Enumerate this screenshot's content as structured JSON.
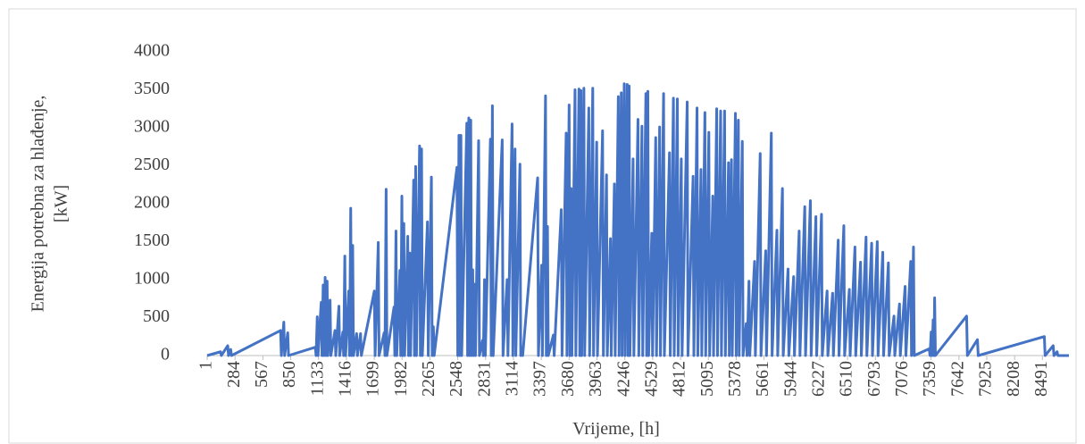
{
  "chart_data": {
    "type": "line",
    "ylabel": [
      "Energija potrebna za hlađenje,",
      "[kW]"
    ],
    "xlabel": "Vrijeme,  [h]",
    "color": "#4472c4",
    "xlim": [
      1,
      8760
    ],
    "xticks": [
      1,
      284,
      567,
      850,
      1133,
      1416,
      1699,
      1982,
      2265,
      2548,
      2831,
      3114,
      3397,
      3680,
      3963,
      4246,
      4529,
      4812,
      5095,
      5378,
      5661,
      5944,
      6227,
      6510,
      6793,
      7076,
      7359,
      7642,
      7925,
      8208,
      8491
    ],
    "ylim": [
      0,
      4000
    ],
    "yticks": [
      0,
      500,
      1000,
      1500,
      2000,
      2500,
      3000,
      3500,
      4000
    ],
    "grid": false,
    "x": [
      1,
      137,
      145,
      210,
      218,
      240,
      248,
      747,
      755,
      780,
      788,
      820,
      828,
      1100,
      1108,
      1120,
      1128,
      1160,
      1168,
      1180,
      1188,
      1200,
      1208,
      1220,
      1228,
      1250,
      1258,
      1300,
      1308,
      1340,
      1348,
      1380,
      1388,
      1400,
      1408,
      1440,
      1448,
      1460,
      1468,
      1480,
      1488,
      1520,
      1528,
      1560,
      1568,
      1700,
      1708,
      1740,
      1748,
      1800,
      1808,
      1820,
      1828,
      1900,
      1908,
      1920,
      1928,
      1960,
      1968,
      1980,
      1988,
      2000,
      2008,
      2040,
      2048,
      2060,
      2068,
      2100,
      2108,
      2120,
      2128,
      2160,
      2168,
      2180,
      2188,
      2240,
      2248,
      2280,
      2288,
      2300,
      2308,
      2540,
      2548,
      2560,
      2568,
      2580,
      2588,
      2640,
      2648,
      2660,
      2668,
      2680,
      2688,
      2700,
      2708,
      2720,
      2728,
      2760,
      2768,
      2800,
      2808,
      2820,
      2828,
      2880,
      2888,
      2900,
      2908,
      3000,
      3008,
      3050,
      3058,
      3100,
      3108,
      3130,
      3138,
      3180,
      3188,
      3200,
      3208,
      3360,
      3368,
      3400,
      3408,
      3440,
      3448,
      3460,
      3468,
      3520,
      3528,
      3600,
      3608,
      3650,
      3658,
      3680,
      3688,
      3700,
      3708,
      3740,
      3748,
      3780,
      3788,
      3800,
      3808,
      3830,
      3838,
      3880,
      3888,
      3920,
      3928,
      3960,
      3968,
      4020,
      4028,
      4060,
      4068,
      4100,
      4108,
      4140,
      4148,
      4180,
      4188,
      4210,
      4218,
      4240,
      4248,
      4270,
      4278,
      4290,
      4298,
      4330,
      4338,
      4380,
      4388,
      4420,
      4428,
      4460,
      4468,
      4480,
      4488,
      4520,
      4528,
      4560,
      4568,
      4600,
      4608,
      4640,
      4648,
      4700,
      4708,
      4740,
      4748,
      4780,
      4788,
      4820,
      4828,
      4880,
      4888,
      4940,
      4948,
      4980,
      4988,
      5020,
      5028,
      5060,
      5068,
      5100,
      5108,
      5140,
      5148,
      5180,
      5188,
      5220,
      5228,
      5260,
      5268,
      5300,
      5308,
      5330,
      5338,
      5370,
      5378,
      5400,
      5408,
      5440,
      5448,
      5480,
      5488,
      5508,
      5516,
      5565,
      5573,
      5622,
      5630,
      5678,
      5686,
      5735,
      5743,
      5792,
      5800,
      5848,
      5856,
      5905,
      5913,
      5962,
      5970,
      6018,
      6026,
      6075,
      6083,
      6132,
      6140,
      6188,
      6196,
      6245,
      6253,
      6302,
      6310,
      6358,
      6366,
      6415,
      6423,
      6472,
      6480,
      6528,
      6536,
      6585,
      6593,
      6642,
      6650,
      6698,
      6706,
      6755,
      6763,
      6812,
      6820,
      6868,
      6876,
      6925,
      6933,
      6982,
      6990,
      7038,
      7046,
      7095,
      7103,
      7152,
      7160,
      7180,
      7188,
      7340,
      7348,
      7360,
      7368,
      7380,
      7388,
      7395,
      7403,
      7720,
      7728,
      7830,
      7838,
      8510,
      8518,
      8600,
      8608,
      8640,
      8648,
      8760
    ],
    "values": [
      0,
      50,
      0,
      130,
      0,
      80,
      0,
      330,
      0,
      440,
      0,
      300,
      0,
      110,
      0,
      510,
      0,
      700,
      0,
      930,
      0,
      1030,
      0,
      980,
      0,
      730,
      0,
      330,
      0,
      650,
      0,
      310,
      0,
      1310,
      0,
      850,
      0,
      1940,
      0,
      1450,
      0,
      290,
      0,
      290,
      0,
      850,
      0,
      1490,
      0,
      300,
      0,
      2190,
      0,
      640,
      0,
      1640,
      0,
      1120,
      0,
      2100,
      0,
      1740,
      0,
      1570,
      0,
      1350,
      0,
      2310,
      0,
      2490,
      0,
      2760,
      0,
      2720,
      0,
      1760,
      0,
      2350,
      0,
      380,
      0,
      2480,
      0,
      2900,
      0,
      2900,
      0,
      3060,
      0,
      3130,
      0,
      3100,
      0,
      1130,
      0,
      940,
      0,
      2830,
      0,
      200,
      0,
      1000,
      0,
      2850,
      0,
      3290,
      0,
      2840,
      0,
      1000,
      0,
      3050,
      0,
      2720,
      0,
      2520,
      0,
      100,
      0,
      2340,
      0,
      1190,
      0,
      3420,
      0,
      1700,
      0,
      270,
      0,
      1920,
      0,
      2930,
      0,
      3300,
      0,
      2200,
      0,
      3500,
      0,
      3510,
      0,
      3490,
      0,
      3520,
      0,
      3260,
      0,
      3520,
      0,
      2810,
      0,
      2960,
      0,
      2380,
      0,
      1540,
      0,
      2260,
      0,
      3410,
      0,
      3460,
      0,
      3580,
      0,
      3570,
      0,
      3550,
      0,
      2590,
      0,
      3110,
      0,
      3020,
      0,
      3450,
      0,
      3480,
      0,
      1610,
      0,
      2870,
      0,
      3010,
      0,
      3450,
      0,
      2670,
      0,
      3390,
      0,
      3380,
      0,
      2590,
      0,
      3340,
      0,
      2360,
      0,
      3260,
      0,
      2450,
      0,
      3200,
      0,
      2940,
      0,
      2100,
      0,
      3250,
      0,
      3220,
      0,
      3220,
      0,
      2540,
      0,
      2580,
      0,
      3190,
      0,
      3100,
      0,
      2820,
      0,
      420,
      0,
      980,
      0,
      1240,
      0,
      2660,
      0,
      1380,
      0,
      2930,
      0,
      1650,
      0,
      2200,
      0,
      1140,
      0,
      1040,
      0,
      1640,
      0,
      1960,
      0,
      2040,
      0,
      1830,
      0,
      1860,
      0,
      850,
      0,
      820,
      0,
      1520,
      0,
      1710,
      0,
      870,
      0,
      1430,
      0,
      1230,
      0,
      1560,
      0,
      1480,
      0,
      1500,
      0,
      1360,
      0,
      1220,
      0,
      520,
      0,
      680,
      0,
      910,
      0,
      1240,
      0,
      1430,
      0,
      90,
      0,
      310,
      0,
      470,
      0,
      760,
      0,
      520,
      0,
      210,
      0,
      250,
      0,
      130,
      0,
      50,
      0,
      0
    ]
  }
}
